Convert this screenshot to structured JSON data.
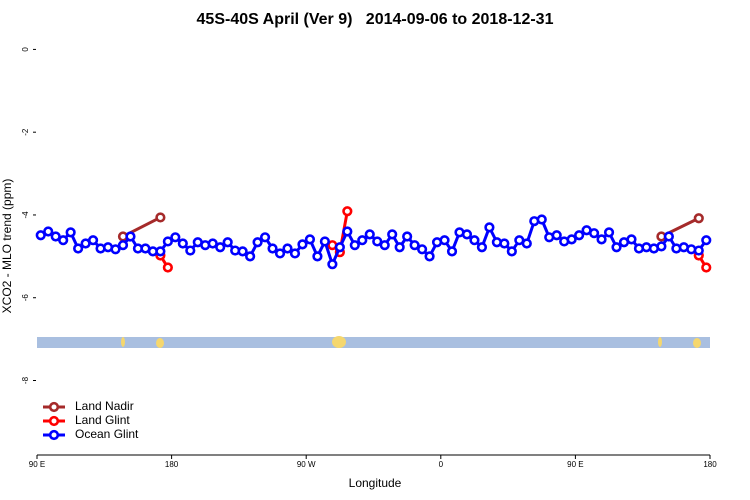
{
  "chart_data": {
    "type": "line",
    "title": "45S-40S April (Ver 9)   2014-09-06 to 2018-12-31",
    "x_label": "Longitude",
    "y_label": "XCO2 - MLO trend (ppm)",
    "xlim": [
      90,
      540
    ],
    "ylim": [
      -9.8,
      0.3
    ],
    "xticks": [
      {
        "value": 90,
        "label": "90 E"
      },
      {
        "value": 180,
        "label": "180"
      },
      {
        "value": 270,
        "label": "90 W"
      },
      {
        "value": 360,
        "label": "0"
      },
      {
        "value": 450,
        "label": "90 E"
      },
      {
        "value": 540,
        "label": "180"
      }
    ],
    "yticks": [
      0,
      -2,
      -4,
      -6,
      -8
    ],
    "legend": "bottom-left",
    "series": [
      {
        "name": "Land Nadir",
        "color": "#a52a2a",
        "x": [
          147.5,
          172.5,
          177.5,
          507.5,
          532.5
        ],
        "values": [
          -4.52,
          -4.06,
          null,
          -4.52,
          -4.08
        ]
      },
      {
        "name": "Land Glint",
        "color": "#ff0000",
        "x": [
          172.5,
          177.5,
          182.5,
          287.5,
          292.5,
          297.5,
          302.5,
          532.5,
          537.5
        ],
        "values": [
          -4.98,
          -5.27,
          null,
          -4.73,
          -4.9,
          -3.91,
          null,
          -4.98,
          -5.27
        ]
      },
      {
        "name": "Ocean Glint",
        "color": "#0000ff",
        "x": [
          92.5,
          97.5,
          102.5,
          107.5,
          112.5,
          117.5,
          122.5,
          127.5,
          132.5,
          137.5,
          142.5,
          147.5,
          152.5,
          157.5,
          162.5,
          167.5,
          172.5,
          177.5,
          182.5,
          187.5,
          192.5,
          197.5,
          202.5,
          207.5,
          212.5,
          217.5,
          222.5,
          227.5,
          232.5,
          237.5,
          242.5,
          247.5,
          252.5,
          257.5,
          262.5,
          267.5,
          272.5,
          277.5,
          282.5,
          287.5,
          292.5,
          297.5,
          302.5,
          307.5,
          312.5,
          317.5,
          322.5,
          327.5,
          332.5,
          337.5,
          342.5,
          347.5,
          352.5,
          357.5,
          362.5,
          367.5,
          372.5,
          377.5,
          382.5,
          387.5,
          392.5,
          397.5,
          402.5,
          407.5,
          412.5,
          417.5,
          422.5,
          427.5,
          432.5,
          437.5,
          442.5,
          447.5,
          452.5,
          457.5,
          462.5,
          467.5,
          472.5,
          477.5,
          482.5,
          487.5,
          492.5,
          497.5,
          502.5,
          507.5,
          512.5,
          517.5,
          522.5,
          527.5,
          532.5,
          537.5
        ],
        "values": [
          -4.49,
          -4.4,
          -4.52,
          -4.61,
          -4.42,
          -4.81,
          -4.69,
          -4.61,
          -4.81,
          -4.78,
          -4.83,
          -4.73,
          -4.52,
          -4.81,
          -4.81,
          -4.88,
          -4.88,
          -4.64,
          -4.54,
          -4.69,
          -4.86,
          -4.66,
          -4.73,
          -4.69,
          -4.78,
          -4.66,
          -4.86,
          -4.88,
          -5.0,
          -4.66,
          -4.54,
          -4.81,
          -4.93,
          -4.81,
          -4.93,
          -4.71,
          -4.59,
          -5.0,
          -4.64,
          -5.19,
          -4.78,
          -4.4,
          -4.73,
          -4.61,
          -4.47,
          -4.64,
          -4.73,
          -4.47,
          -4.78,
          -4.52,
          -4.73,
          -4.83,
          -5.0,
          -4.66,
          -4.61,
          -4.88,
          -4.42,
          -4.47,
          -4.61,
          -4.78,
          -4.3,
          -4.66,
          -4.69,
          -4.88,
          -4.61,
          -4.69,
          -4.15,
          -4.11,
          -4.54,
          -4.49,
          -4.64,
          -4.59,
          -4.49,
          -4.37,
          -4.44,
          -4.59,
          -4.42,
          -4.78,
          -4.66,
          -4.59,
          -4.81,
          -4.78,
          -4.81,
          -4.76,
          -4.52,
          -4.81,
          -4.78,
          -4.83,
          -4.86,
          -4.61
        ]
      }
    ]
  }
}
